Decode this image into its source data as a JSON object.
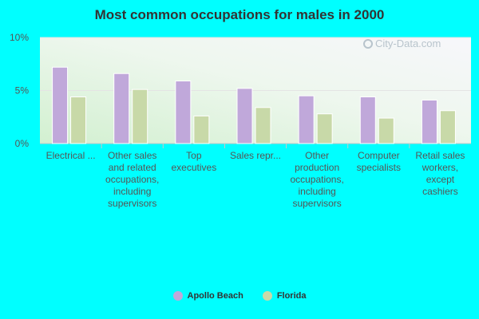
{
  "chart_data": {
    "type": "bar",
    "title": "Most common occupations for males in 2000",
    "categories": [
      "Electrical ...",
      "Other sales and related occupations, including supervisors",
      "Top executives",
      "Sales repr...",
      "Other production occupations, including supervisors",
      "Computer specialists",
      "Retail sales workers, except cashiers"
    ],
    "category_lines": [
      [
        "Electrical ..."
      ],
      [
        "Other sales",
        "and related",
        "occupations,",
        "including",
        "supervisors"
      ],
      [
        "Top",
        "executives"
      ],
      [
        "Sales repr..."
      ],
      [
        "Other",
        "production",
        "occupations,",
        "including",
        "supervisors"
      ],
      [
        "Computer",
        "specialists"
      ],
      [
        "Retail sales",
        "workers,",
        "except",
        "cashiers"
      ]
    ],
    "series": [
      {
        "name": "Apollo Beach",
        "color": "#c0a8da",
        "values": [
          7.2,
          6.6,
          5.9,
          5.2,
          4.5,
          4.4,
          4.1
        ]
      },
      {
        "name": "Florida",
        "color": "#c8d9a8",
        "values": [
          4.4,
          5.1,
          2.6,
          3.4,
          2.8,
          2.4,
          3.1
        ]
      }
    ],
    "yticks": [
      "0%",
      "5%",
      "10%"
    ],
    "ylim": [
      0,
      10
    ],
    "xlabel": "",
    "ylabel": "",
    "legend_position": "bottom"
  },
  "watermark": "City-Data.com"
}
